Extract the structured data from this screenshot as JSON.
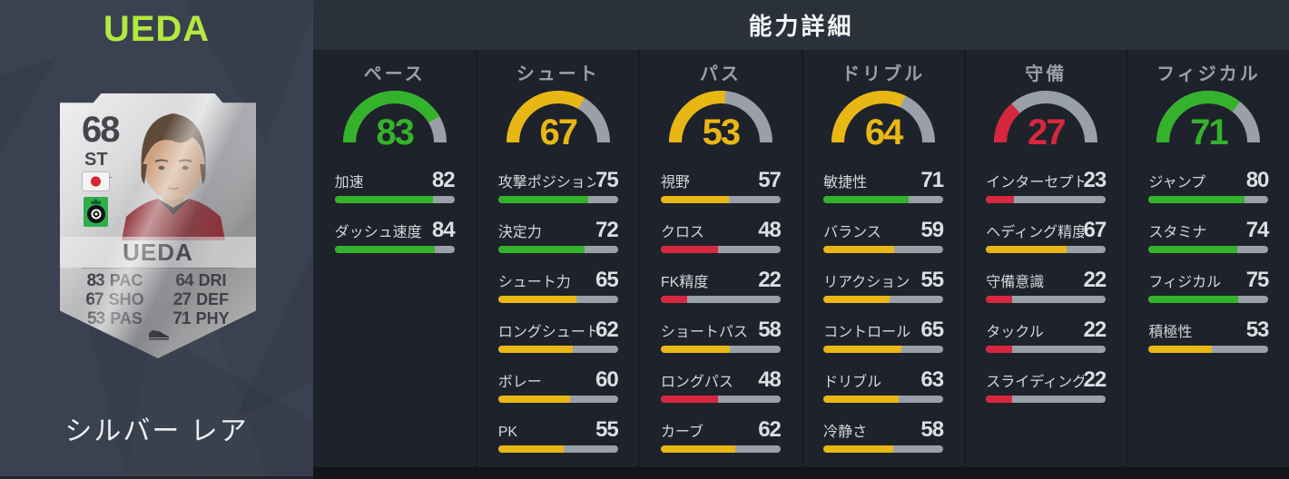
{
  "left_panel": {
    "player_title": "UEDA",
    "rarity": "シルバー レア",
    "card": {
      "rating": "68",
      "position": "ST",
      "name": "UEDA",
      "flag_icon": "japan-flag-icon",
      "club_icon": "club-badge-icon",
      "quick_stats": [
        {
          "value": "83",
          "label": "PAC"
        },
        {
          "value": "64",
          "label": "DRI"
        },
        {
          "value": "67",
          "label": "SHO"
        },
        {
          "value": "27",
          "label": "DEF"
        },
        {
          "value": "53",
          "label": "PAS"
        },
        {
          "value": "71",
          "label": "PHY"
        }
      ]
    }
  },
  "detail_panel": {
    "title": "能力詳細",
    "colors": {
      "high": "#34b22c",
      "mid": "#e9b714",
      "low": "#d6273e",
      "track": "#9aa0a8"
    },
    "thresholds": {
      "high": 70,
      "mid": 50
    },
    "categories": [
      {
        "label": "ペース",
        "value": 83,
        "stats": [
          {
            "label": "加速",
            "value": 82
          },
          {
            "label": "ダッシュ速度",
            "value": 84
          }
        ]
      },
      {
        "label": "シュート",
        "value": 67,
        "stats": [
          {
            "label": "攻撃ポジション",
            "value": 75
          },
          {
            "label": "決定力",
            "value": 72
          },
          {
            "label": "シュート力",
            "value": 65
          },
          {
            "label": "ロングシュート",
            "value": 62
          },
          {
            "label": "ボレー",
            "value": 60
          },
          {
            "label": "PK",
            "value": 55
          }
        ]
      },
      {
        "label": "パス",
        "value": 53,
        "stats": [
          {
            "label": "視野",
            "value": 57
          },
          {
            "label": "クロス",
            "value": 48
          },
          {
            "label": "FK精度",
            "value": 22
          },
          {
            "label": "ショートパス",
            "value": 58
          },
          {
            "label": "ロングパス",
            "value": 48
          },
          {
            "label": "カーブ",
            "value": 62
          }
        ]
      },
      {
        "label": "ドリブル",
        "value": 64,
        "stats": [
          {
            "label": "敏捷性",
            "value": 71
          },
          {
            "label": "バランス",
            "value": 59
          },
          {
            "label": "リアクション",
            "value": 55
          },
          {
            "label": "コントロール",
            "value": 65
          },
          {
            "label": "ドリブル",
            "value": 63
          },
          {
            "label": "冷静さ",
            "value": 58
          }
        ]
      },
      {
        "label": "守備",
        "value": 27,
        "stats": [
          {
            "label": "インターセプト",
            "value": 23
          },
          {
            "label": "ヘディング精度",
            "value": 67
          },
          {
            "label": "守備意識",
            "value": 22
          },
          {
            "label": "タックル",
            "value": 22
          },
          {
            "label": "スライディング",
            "value": 22
          }
        ]
      },
      {
        "label": "フィジカル",
        "value": 71,
        "stats": [
          {
            "label": "ジャンプ",
            "value": 80
          },
          {
            "label": "スタミナ",
            "value": 74
          },
          {
            "label": "フィジカル",
            "value": 75
          },
          {
            "label": "積極性",
            "value": 53
          }
        ]
      }
    ]
  }
}
